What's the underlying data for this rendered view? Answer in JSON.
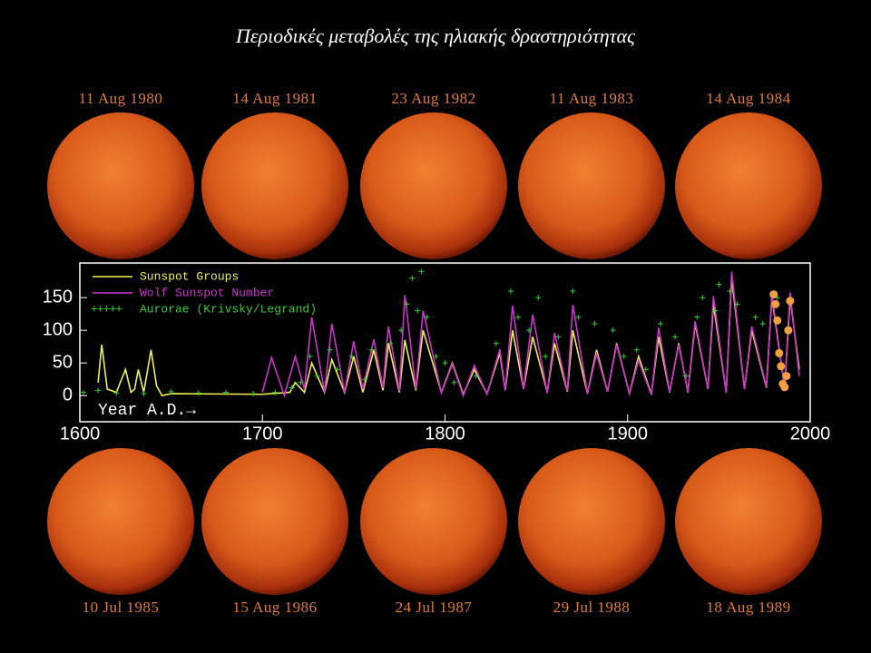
{
  "title": "Περιοδικές μεταβολές της ηλιακής δραστηριότητας",
  "suns_top": [
    "11 Aug 1980",
    "14 Aug 1981",
    "23 Aug 1982",
    "11 Aug 1983",
    "14 Aug 1984"
  ],
  "suns_bottom": [
    "10 Jul 1985",
    "15 Aug 1986",
    "24 Jul 1987",
    "29 Jul 1988",
    "18 Aug 1989"
  ],
  "chart_data": {
    "type": "line",
    "x_label": "Year A.D.→",
    "xlim": [
      1600,
      2000
    ],
    "xticks": [
      1600,
      1700,
      1800,
      1900,
      2000
    ],
    "ylim": [
      -40,
      203
    ],
    "yticks": [
      0,
      50,
      100,
      150
    ],
    "legend": "upper left",
    "series": [
      {
        "name": "Sunspot Groups",
        "color": "#f0f050",
        "marker": "line",
        "x": [
          1610,
          1612,
          1615,
          1620,
          1625,
          1628,
          1630,
          1632,
          1635,
          1639,
          1642,
          1645,
          1650,
          1700,
          1715,
          1718,
          1723,
          1727,
          1734,
          1738,
          1745,
          1750,
          1755,
          1761,
          1766,
          1769,
          1775,
          1778,
          1784,
          1788,
          1798,
          1804,
          1810,
          1816,
          1823,
          1830,
          1833,
          1837,
          1843,
          1848,
          1856,
          1860,
          1867,
          1870,
          1878,
          1883,
          1889,
          1894,
          1901,
          1906,
          1913,
          1917,
          1923,
          1928,
          1933,
          1937,
          1944,
          1947,
          1954,
          1957,
          1964,
          1968,
          1976,
          1979,
          1986,
          1989,
          1994
        ],
        "values": [
          20,
          78,
          10,
          5,
          40,
          5,
          10,
          40,
          5,
          70,
          15,
          0,
          3,
          2,
          5,
          20,
          5,
          50,
          5,
          55,
          5,
          60,
          5,
          70,
          8,
          80,
          5,
          85,
          8,
          100,
          5,
          50,
          2,
          40,
          3,
          65,
          8,
          100,
          10,
          90,
          5,
          80,
          6,
          100,
          3,
          70,
          6,
          80,
          3,
          60,
          2,
          90,
          5,
          80,
          5,
          110,
          10,
          140,
          5,
          180,
          10,
          100,
          12,
          150,
          12,
          150,
          40
        ]
      },
      {
        "name": "Wolf Sunspot Number",
        "color": "#cc33cc",
        "marker": "line",
        "x": [
          1700,
          1705,
          1712,
          1718,
          1723,
          1727,
          1734,
          1738,
          1745,
          1750,
          1755,
          1761,
          1766,
          1769,
          1775,
          1778,
          1784,
          1788,
          1798,
          1804,
          1810,
          1816,
          1823,
          1830,
          1833,
          1837,
          1843,
          1848,
          1856,
          1860,
          1867,
          1870,
          1878,
          1883,
          1889,
          1894,
          1901,
          1906,
          1913,
          1917,
          1923,
          1928,
          1933,
          1937,
          1944,
          1947,
          1954,
          1957,
          1964,
          1968,
          1976,
          1979,
          1986,
          1989,
          1994
        ],
        "values": [
          5,
          58,
          0,
          60,
          10,
          120,
          5,
          110,
          5,
          83,
          10,
          86,
          12,
          106,
          7,
          154,
          10,
          130,
          4,
          48,
          0,
          46,
          2,
          71,
          8,
          138,
          10,
          124,
          4,
          96,
          7,
          139,
          3,
          64,
          6,
          78,
          3,
          54,
          1,
          104,
          6,
          78,
          6,
          114,
          10,
          152,
          4,
          190,
          10,
          106,
          13,
          155,
          13,
          158,
          30
        ]
      },
      {
        "name": "Aurorae (Krivsky/Legrand)",
        "color": "#33cc33",
        "marker": "plus",
        "x": [
          1602,
          1610,
          1620,
          1635,
          1650,
          1665,
          1680,
          1695,
          1707,
          1716,
          1721,
          1726,
          1730,
          1737,
          1741,
          1749,
          1756,
          1760,
          1770,
          1776,
          1779,
          1782,
          1785,
          1787,
          1790,
          1795,
          1800,
          1805,
          1817,
          1828,
          1836,
          1840,
          1846,
          1851,
          1855,
          1862,
          1870,
          1873,
          1882,
          1892,
          1898,
          1905,
          1910,
          1918,
          1926,
          1932,
          1938,
          1941,
          1948,
          1950,
          1956,
          1960,
          1970,
          1974,
          1982
        ],
        "values": [
          5,
          8,
          4,
          3,
          6,
          4,
          5,
          3,
          5,
          12,
          20,
          60,
          30,
          70,
          40,
          60,
          25,
          70,
          80,
          100,
          140,
          180,
          130,
          190,
          120,
          60,
          50,
          20,
          30,
          80,
          160,
          120,
          100,
          150,
          60,
          90,
          160,
          120,
          110,
          100,
          60,
          70,
          40,
          110,
          90,
          30,
          120,
          150,
          130,
          170,
          160,
          140,
          120,
          110,
          150
        ]
      },
      {
        "color": "#f0a040",
        "marker": "dot",
        "x": [
          1980,
          1981,
          1982,
          1983,
          1984,
          1985,
          1986,
          1987,
          1988,
          1989
        ],
        "values": [
          155,
          140,
          115,
          65,
          45,
          18,
          13,
          30,
          100,
          145
        ]
      }
    ]
  }
}
